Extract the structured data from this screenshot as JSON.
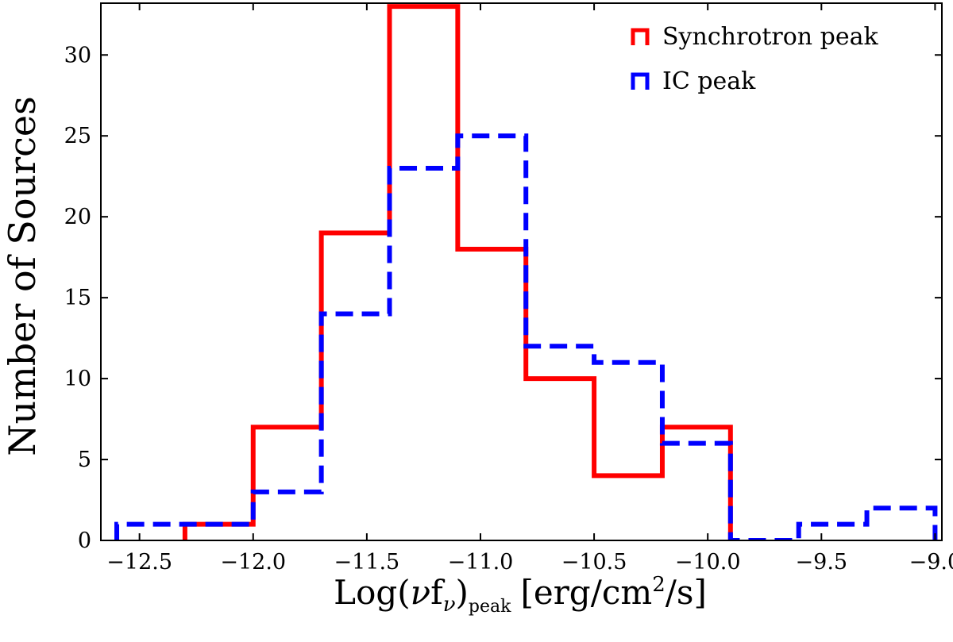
{
  "chart_data": {
    "type": "histogram",
    "xlabel": {
      "main": "Log(",
      "nu": "ν",
      "f": "f",
      "sub_nu": "ν",
      "close": ")",
      "peak": "peak",
      "units_pre": "[erg/cm",
      "units_sup": "2",
      "units_post": "/s]"
    },
    "ylabel": "Number of Sources",
    "xlim": [
      -12.67,
      -8.97
    ],
    "ylim": [
      0,
      33.2
    ],
    "xticks": [
      -12.5,
      -12.0,
      -11.5,
      -11.0,
      -10.5,
      -10.0,
      -9.5,
      -9.0
    ],
    "xtick_labels": [
      "−12.5",
      "−12.0",
      "−11.5",
      "−11.0",
      "−10.5",
      "−10.0",
      "−9.5",
      "−9.0"
    ],
    "yticks": [
      0,
      5,
      10,
      15,
      20,
      25,
      30
    ],
    "ytick_labels": [
      "0",
      "5",
      "10",
      "15",
      "20",
      "25",
      "30"
    ],
    "legend_position": "top-right",
    "series": [
      {
        "name": "Synchrotron peak",
        "color": "#ff0000",
        "style": "solid",
        "bin_edges": [
          -12.3,
          -12.0,
          -11.7,
          -11.4,
          -11.1,
          -10.8,
          -10.5,
          -10.2,
          -9.9
        ],
        "counts": [
          1,
          7,
          19,
          33,
          18,
          10,
          4,
          7
        ]
      },
      {
        "name": "IC peak",
        "color": "#0000ff",
        "style": "dashed",
        "bin_edges": [
          -12.6,
          -12.3,
          -12.0,
          -11.7,
          -11.4,
          -11.1,
          -10.8,
          -10.5,
          -10.2,
          -9.9,
          -9.6,
          -9.3,
          -9.0
        ],
        "counts": [
          1,
          1,
          3,
          14,
          23,
          25,
          12,
          11,
          6,
          0,
          1,
          2
        ]
      }
    ]
  }
}
